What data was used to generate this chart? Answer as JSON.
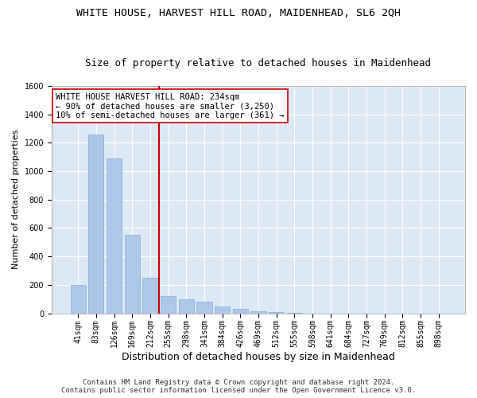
{
  "title": "WHITE HOUSE, HARVEST HILL ROAD, MAIDENHEAD, SL6 2QH",
  "subtitle": "Size of property relative to detached houses in Maidenhead",
  "xlabel": "Distribution of detached houses by size in Maidenhead",
  "ylabel": "Number of detached properties",
  "bar_color": "#aec6e8",
  "bar_edge_color": "#7bafd4",
  "background_color": "#dce9f5",
  "grid_color": "white",
  "categories": [
    "41sqm",
    "83sqm",
    "126sqm",
    "169sqm",
    "212sqm",
    "255sqm",
    "298sqm",
    "341sqm",
    "384sqm",
    "426sqm",
    "469sqm",
    "512sqm",
    "555sqm",
    "598sqm",
    "641sqm",
    "684sqm",
    "727sqm",
    "769sqm",
    "812sqm",
    "855sqm",
    "898sqm"
  ],
  "values": [
    200,
    1260,
    1090,
    550,
    250,
    120,
    100,
    80,
    50,
    30,
    15,
    10,
    5,
    0,
    0,
    0,
    0,
    0,
    0,
    0,
    0
  ],
  "ylim": [
    0,
    1600
  ],
  "yticks": [
    0,
    200,
    400,
    600,
    800,
    1000,
    1200,
    1400,
    1600
  ],
  "vline_x": 4.5,
  "vline_color": "#cc0000",
  "annotation_text": "WHITE HOUSE HARVEST HILL ROAD: 234sqm\n← 90% of detached houses are smaller (3,250)\n10% of semi-detached houses are larger (361) →",
  "annotation_box_color": "white",
  "annotation_box_edge": "#cc0000",
  "footer_line1": "Contains HM Land Registry data © Crown copyright and database right 2024.",
  "footer_line2": "Contains public sector information licensed under the Open Government Licence v3.0.",
  "title_fontsize": 9.5,
  "subtitle_fontsize": 9,
  "xlabel_fontsize": 9,
  "ylabel_fontsize": 8,
  "tick_fontsize": 7,
  "footer_fontsize": 6.5,
  "annotation_fontsize": 7.5
}
